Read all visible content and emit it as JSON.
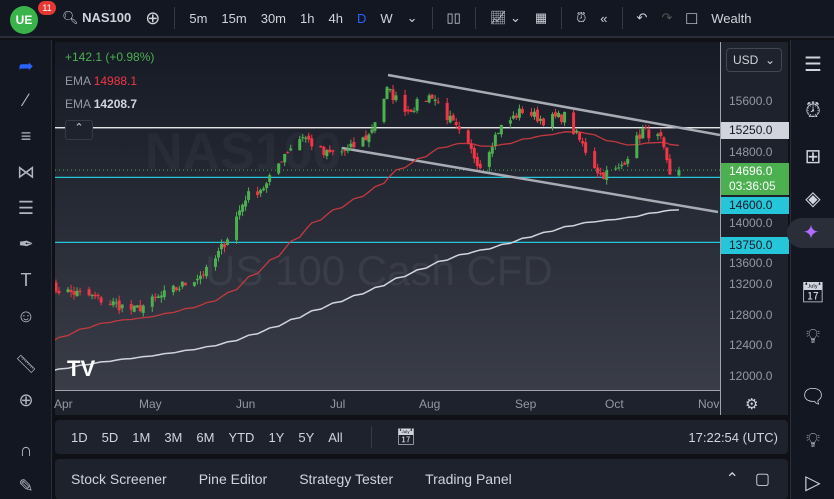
{
  "topbar": {
    "notifications": "11",
    "symbol": "NAS100",
    "timeframes": [
      "5m",
      "15m",
      "30m",
      "1h",
      "4h",
      "D",
      "W"
    ],
    "active_timeframe": "D",
    "account_label": "Wealth"
  },
  "legend": {
    "change": "+142.1 (+0.98%)",
    "ema1_label": "EMA",
    "ema1_value": "14988.1",
    "ema2_label": "EMA",
    "ema2_value": "14208.7"
  },
  "watermark": {
    "symbol": "NAS100",
    "description": "US 100 Cash CFD"
  },
  "price_axis": {
    "currency": "USD",
    "ticks": [
      "15600.0",
      "14800.0",
      "14000.0",
      "13600.0",
      "13200.0",
      "12800.0",
      "12400.0",
      "12000.0"
    ],
    "tick_values": [
      15600,
      14800,
      14000,
      13600,
      13200,
      12800,
      12400,
      12000
    ],
    "current_price": "14696.0",
    "countdown": "03:36:05",
    "levels": [
      {
        "label": "15250.0",
        "value": 15250,
        "color": "#ffffff"
      },
      {
        "label": "14600.0",
        "value": 14600,
        "color": "#26c6da"
      },
      {
        "label": "13750.0",
        "value": 13750,
        "color": "#26c6da"
      }
    ]
  },
  "time_axis": {
    "labels": [
      "Apr",
      "May",
      "Jun",
      "Jul",
      "Aug",
      "Sep",
      "Oct",
      "Nov"
    ]
  },
  "colors": {
    "up": "#4caf50",
    "down": "#f23645",
    "ema_fast": "#c23a3f",
    "ema_slow": "#d1d4dc",
    "accent": "#2962ff",
    "level": "#26c6da"
  },
  "price_path": [
    [
      "03-28",
      13150
    ],
    [
      "04-10",
      13050
    ],
    [
      "04-25",
      12860
    ],
    [
      "05-10",
      13165
    ],
    [
      "05-20",
      13390
    ],
    [
      "05-26",
      13820
    ],
    [
      "06-01",
      14340
    ],
    [
      "06-08",
      14500
    ],
    [
      "06-14",
      14920
    ],
    [
      "06-20",
      15150
    ],
    [
      "06-27",
      14900
    ],
    [
      "07-05",
      14950
    ],
    [
      "07-12",
      15150
    ],
    [
      "07-18",
      15740
    ],
    [
      "07-25",
      15480
    ],
    [
      "08-02",
      15680
    ],
    [
      "08-09",
      15290
    ],
    [
      "08-18",
      14760
    ],
    [
      "08-24",
      15220
    ],
    [
      "09-01",
      15480
    ],
    [
      "09-08",
      15350
    ],
    [
      "09-15",
      15400
    ],
    [
      "09-21",
      15020
    ],
    [
      "09-27",
      14630
    ],
    [
      "10-03",
      14700
    ],
    [
      "10-11",
      15220
    ],
    [
      "10-17",
      15090
    ],
    [
      "10-20",
      14600
    ],
    [
      "10-23",
      14696
    ]
  ],
  "range_bar": {
    "ranges": [
      "1D",
      "5D",
      "1M",
      "3M",
      "6M",
      "YTD",
      "1Y",
      "5Y",
      "All"
    ],
    "clock": "17:22:54 (UTC)"
  },
  "bottom_panel": {
    "tabs": [
      "Stock Screener",
      "Pine Editor",
      "Strategy Tester",
      "Trading Panel"
    ]
  }
}
